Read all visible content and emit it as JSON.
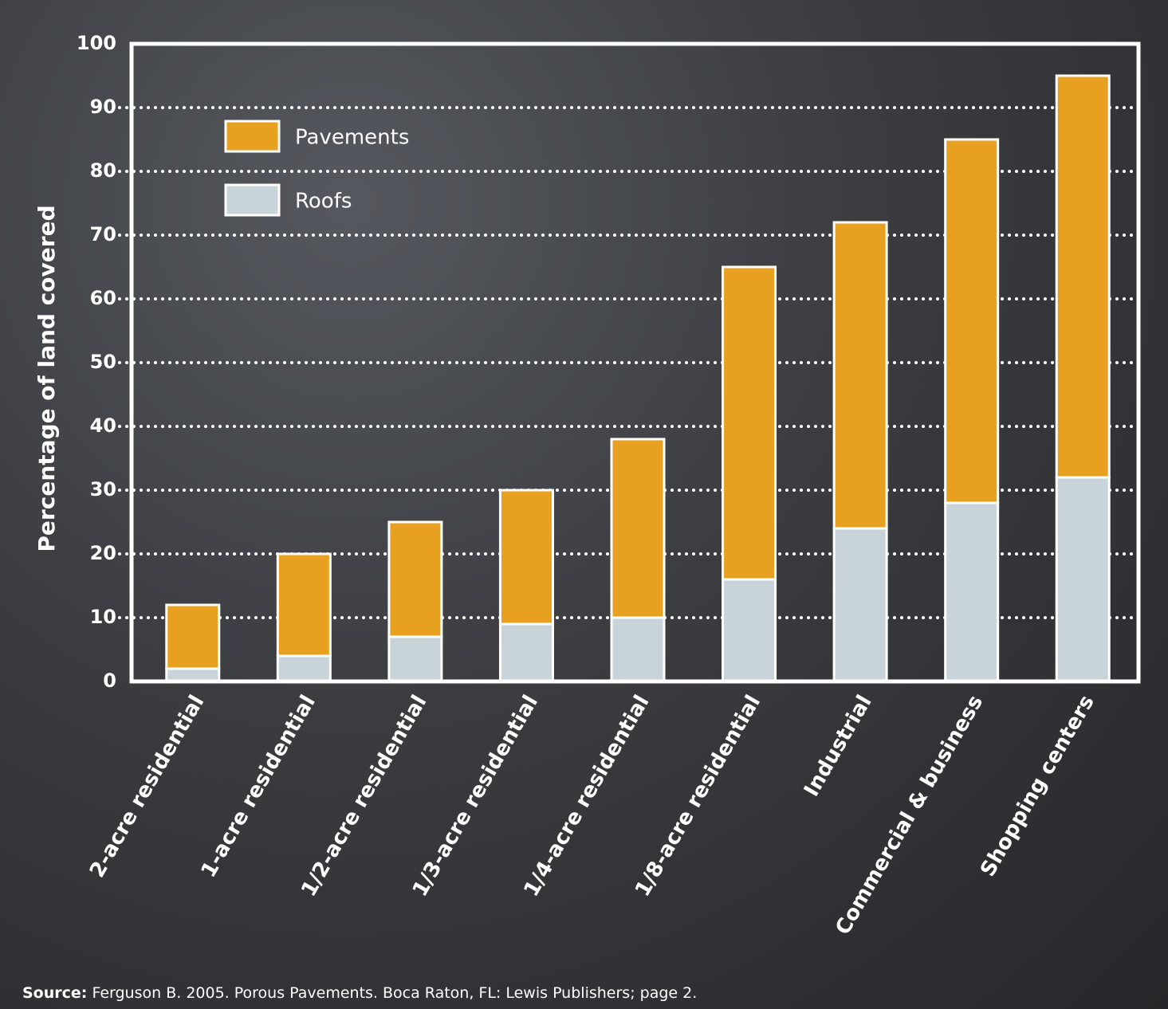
{
  "chart_data": {
    "type": "stacked-bar",
    "y_label": "Percentage of land covered",
    "categories": [
      "2-acre residential",
      "1-acre residential",
      "1/2-acre residential",
      "1/3-acre residential",
      "1/4-acre residential",
      "1/8-acre residential",
      "Industrial",
      "Commercial & business",
      "Shopping centers"
    ],
    "series": [
      {
        "name": "Roofs",
        "color": "#c9d3da",
        "values": [
          2,
          4,
          7,
          9,
          10,
          16,
          24,
          28,
          32
        ]
      },
      {
        "name": "Pavements",
        "color": "#e8a020",
        "values": [
          10,
          16,
          18,
          21,
          28,
          49,
          48,
          57,
          63
        ]
      }
    ],
    "ylim": [
      0,
      100
    ],
    "yticks": [
      0,
      10,
      20,
      30,
      40,
      50,
      60,
      70,
      80,
      90,
      100
    ],
    "grid": true,
    "legend": "upper left",
    "source_label": "Source:",
    "source": "Ferguson B. 2005. Porous Pavements. Boca Raton, FL: Lewis Publishers; page 2."
  }
}
